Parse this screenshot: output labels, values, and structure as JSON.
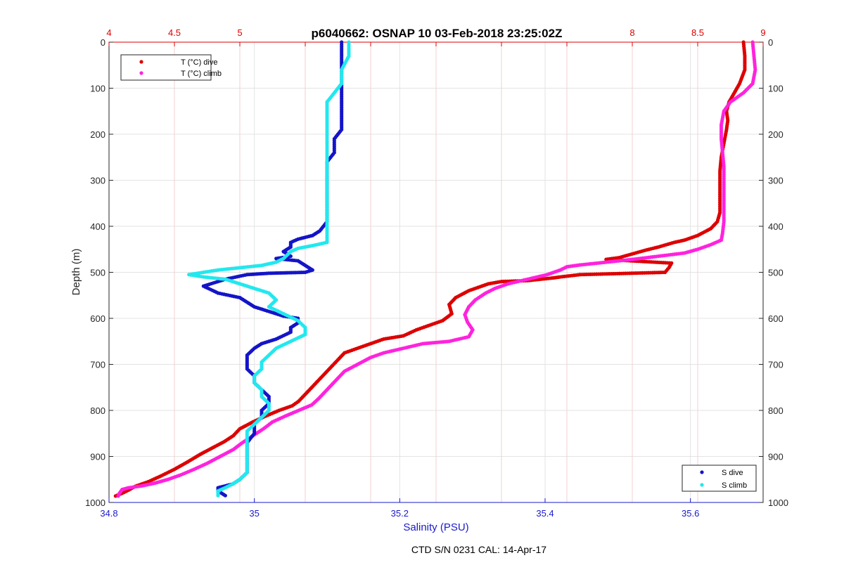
{
  "chart_data": {
    "type": "scatter",
    "title": "p6040662: OSNAP 10 03-Feb-2018 23:25:02Z",
    "footer": "CTD S/N 0231  CAL: 14-Apr-17",
    "y_axis": {
      "label": "Depth (m)",
      "lim": [
        0,
        1000
      ],
      "reversed": true,
      "ticks": [
        0,
        100,
        200,
        300,
        400,
        500,
        600,
        700,
        800,
        900,
        1000
      ]
    },
    "x_bottom": {
      "label": "Salinity (PSU)",
      "lim": [
        34.8,
        35.7
      ],
      "ticks": [
        34.8,
        35,
        35.2,
        35.4,
        35.6
      ],
      "tick_labels": [
        "34.8",
        "35",
        "35.2",
        "35.4",
        "35.6"
      ],
      "color": "#1a1acc"
    },
    "x_top": {
      "lim": [
        4,
        9
      ],
      "ticks": [
        4,
        4.5,
        5,
        5.5,
        6,
        6.5,
        7,
        7.5,
        8,
        8.5,
        9
      ],
      "tick_labels": [
        "4",
        "4.5",
        "5",
        "",
        "",
        "",
        "",
        "",
        "8",
        "8.5",
        "9"
      ],
      "color": "#dd0000"
    },
    "grid": true,
    "legends": {
      "top_left": [
        {
          "label": "T (°C) dive",
          "color": "#dd0000"
        },
        {
          "label": "T (°C) climb",
          "color": "#ff22dd"
        }
      ],
      "bottom_right": [
        {
          "label": "S dive",
          "color": "#1414c8"
        },
        {
          "label": "S climb",
          "color": "#22e8ee"
        }
      ]
    },
    "series": [
      {
        "name": "T (°C) dive",
        "axis": "top",
        "color": "#dd0000",
        "points": [
          [
            8.85,
            0
          ],
          [
            8.86,
            30
          ],
          [
            8.86,
            60
          ],
          [
            8.82,
            90
          ],
          [
            8.78,
            110
          ],
          [
            8.74,
            130
          ],
          [
            8.72,
            150
          ],
          [
            8.73,
            170
          ],
          [
            8.72,
            190
          ],
          [
            8.7,
            220
          ],
          [
            8.68,
            250
          ],
          [
            8.67,
            280
          ],
          [
            8.67,
            310
          ],
          [
            8.67,
            340
          ],
          [
            8.67,
            370
          ],
          [
            8.65,
            390
          ],
          [
            8.6,
            405
          ],
          [
            8.5,
            420
          ],
          [
            8.4,
            430
          ],
          [
            8.32,
            435
          ],
          [
            8.2,
            445
          ],
          [
            8.1,
            452
          ],
          [
            8.0,
            460
          ],
          [
            7.9,
            468
          ],
          [
            7.8,
            472
          ],
          [
            8.3,
            480
          ],
          [
            8.28,
            490
          ],
          [
            8.25,
            500
          ],
          [
            7.6,
            505
          ],
          [
            7.45,
            510
          ],
          [
            7.4,
            512
          ],
          [
            7.3,
            515
          ],
          [
            7.2,
            518
          ],
          [
            7.0,
            520
          ],
          [
            6.9,
            525
          ],
          [
            6.85,
            530
          ],
          [
            6.75,
            540
          ],
          [
            6.65,
            555
          ],
          [
            6.6,
            570
          ],
          [
            6.62,
            590
          ],
          [
            6.55,
            605
          ],
          [
            6.45,
            615
          ],
          [
            6.35,
            625
          ],
          [
            6.25,
            638
          ],
          [
            6.1,
            645
          ],
          [
            6.0,
            655
          ],
          [
            5.9,
            665
          ],
          [
            5.8,
            675
          ],
          [
            5.75,
            690
          ],
          [
            5.7,
            705
          ],
          [
            5.65,
            720
          ],
          [
            5.6,
            735
          ],
          [
            5.55,
            750
          ],
          [
            5.5,
            765
          ],
          [
            5.45,
            780
          ],
          [
            5.4,
            790
          ],
          [
            5.3,
            800
          ],
          [
            5.2,
            812
          ],
          [
            5.1,
            825
          ],
          [
            5.0,
            840
          ],
          [
            4.95,
            855
          ],
          [
            4.88,
            868
          ],
          [
            4.8,
            880
          ],
          [
            4.7,
            895
          ],
          [
            4.6,
            912
          ],
          [
            4.5,
            928
          ],
          [
            4.4,
            942
          ],
          [
            4.3,
            955
          ],
          [
            4.2,
            965
          ],
          [
            4.15,
            973
          ],
          [
            4.1,
            980
          ],
          [
            4.05,
            986
          ]
        ]
      },
      {
        "name": "T (°C) climb",
        "axis": "top",
        "color": "#ff22dd",
        "points": [
          [
            8.92,
            0
          ],
          [
            8.93,
            30
          ],
          [
            8.94,
            60
          ],
          [
            8.92,
            90
          ],
          [
            8.85,
            110
          ],
          [
            8.75,
            130
          ],
          [
            8.7,
            150
          ],
          [
            8.68,
            180
          ],
          [
            8.68,
            210
          ],
          [
            8.69,
            240
          ],
          [
            8.7,
            270
          ],
          [
            8.7,
            300
          ],
          [
            8.7,
            330
          ],
          [
            8.7,
            360
          ],
          [
            8.7,
            390
          ],
          [
            8.69,
            415
          ],
          [
            8.68,
            430
          ],
          [
            8.6,
            440
          ],
          [
            8.5,
            450
          ],
          [
            8.4,
            458
          ],
          [
            8.2,
            465
          ],
          [
            8.0,
            472
          ],
          [
            7.8,
            478
          ],
          [
            7.6,
            484
          ],
          [
            7.5,
            488
          ],
          [
            7.45,
            495
          ],
          [
            7.35,
            505
          ],
          [
            7.2,
            515
          ],
          [
            7.05,
            525
          ],
          [
            6.95,
            535
          ],
          [
            6.88,
            545
          ],
          [
            6.8,
            560
          ],
          [
            6.75,
            575
          ],
          [
            6.72,
            592
          ],
          [
            6.74,
            608
          ],
          [
            6.78,
            625
          ],
          [
            6.75,
            640
          ],
          [
            6.6,
            650
          ],
          [
            6.4,
            655
          ],
          [
            6.25,
            665
          ],
          [
            6.1,
            675
          ],
          [
            6.0,
            685
          ],
          [
            5.9,
            700
          ],
          [
            5.8,
            715
          ],
          [
            5.75,
            730
          ],
          [
            5.7,
            745
          ],
          [
            5.65,
            760
          ],
          [
            5.6,
            775
          ],
          [
            5.55,
            788
          ],
          [
            5.45,
            800
          ],
          [
            5.35,
            812
          ],
          [
            5.25,
            825
          ],
          [
            5.18,
            840
          ],
          [
            5.1,
            855
          ],
          [
            5.02,
            870
          ],
          [
            4.95,
            885
          ],
          [
            4.85,
            900
          ],
          [
            4.75,
            915
          ],
          [
            4.65,
            928
          ],
          [
            4.55,
            940
          ],
          [
            4.45,
            950
          ],
          [
            4.35,
            958
          ],
          [
            4.25,
            964
          ],
          [
            4.15,
            968
          ],
          [
            4.1,
            972
          ],
          [
            4.08,
            980
          ],
          [
            4.07,
            986
          ]
        ]
      },
      {
        "name": "S dive",
        "axis": "bottom",
        "color": "#1414c8",
        "points": [
          [
            35.12,
            0
          ],
          [
            35.12,
            30
          ],
          [
            35.12,
            60
          ],
          [
            35.12,
            90
          ],
          [
            35.12,
            110
          ],
          [
            35.12,
            130
          ],
          [
            35.12,
            150
          ],
          [
            35.12,
            170
          ],
          [
            35.12,
            190
          ],
          [
            35.11,
            210
          ],
          [
            35.11,
            240
          ],
          [
            35.1,
            260
          ],
          [
            35.1,
            280
          ],
          [
            35.1,
            300
          ],
          [
            35.1,
            330
          ],
          [
            35.1,
            360
          ],
          [
            35.1,
            390
          ],
          [
            35.09,
            410
          ],
          [
            35.08,
            420
          ],
          [
            35.06,
            428
          ],
          [
            35.05,
            435
          ],
          [
            35.05,
            445
          ],
          [
            35.04,
            455
          ],
          [
            35.05,
            465
          ],
          [
            35.03,
            470
          ],
          [
            35.06,
            475
          ],
          [
            35.07,
            485
          ],
          [
            35.08,
            495
          ],
          [
            35.07,
            500
          ],
          [
            35.02,
            502
          ],
          [
            34.99,
            505
          ],
          [
            34.96,
            515
          ],
          [
            34.93,
            530
          ],
          [
            34.95,
            545
          ],
          [
            34.98,
            555
          ],
          [
            34.99,
            565
          ],
          [
            35.0,
            575
          ],
          [
            35.02,
            585
          ],
          [
            35.04,
            595
          ],
          [
            35.06,
            600
          ],
          [
            35.06,
            610
          ],
          [
            35.05,
            620
          ],
          [
            35.05,
            630
          ],
          [
            35.03,
            645
          ],
          [
            35.01,
            655
          ],
          [
            35.0,
            665
          ],
          [
            34.99,
            680
          ],
          [
            34.99,
            695
          ],
          [
            34.99,
            710
          ],
          [
            35.0,
            725
          ],
          [
            35.0,
            740
          ],
          [
            35.01,
            755
          ],
          [
            35.02,
            770
          ],
          [
            35.02,
            785
          ],
          [
            35.01,
            800
          ],
          [
            35.01,
            815
          ],
          [
            35.0,
            830
          ],
          [
            35.0,
            850
          ],
          [
            34.99,
            870
          ],
          [
            34.99,
            890
          ],
          [
            34.99,
            905
          ],
          [
            34.99,
            920
          ],
          [
            34.99,
            935
          ],
          [
            34.98,
            950
          ],
          [
            34.97,
            960
          ],
          [
            34.95,
            968
          ],
          [
            34.95,
            975
          ],
          [
            34.96,
            985
          ]
        ]
      },
      {
        "name": "S climb",
        "axis": "bottom",
        "color": "#22e8ee",
        "points": [
          [
            35.13,
            0
          ],
          [
            35.13,
            30
          ],
          [
            35.12,
            60
          ],
          [
            35.12,
            90
          ],
          [
            35.11,
            110
          ],
          [
            35.1,
            130
          ],
          [
            35.1,
            150
          ],
          [
            35.1,
            170
          ],
          [
            35.1,
            190
          ],
          [
            35.1,
            220
          ],
          [
            35.1,
            250
          ],
          [
            35.1,
            280
          ],
          [
            35.1,
            310
          ],
          [
            35.1,
            340
          ],
          [
            35.1,
            370
          ],
          [
            35.1,
            400
          ],
          [
            35.1,
            420
          ],
          [
            35.1,
            435
          ],
          [
            35.08,
            442
          ],
          [
            35.06,
            448
          ],
          [
            35.05,
            455
          ],
          [
            35.04,
            470
          ],
          [
            35.03,
            478
          ],
          [
            35.01,
            485
          ],
          [
            34.98,
            490
          ],
          [
            34.95,
            495
          ],
          [
            34.93,
            500
          ],
          [
            34.91,
            505
          ],
          [
            34.93,
            510
          ],
          [
            34.96,
            515
          ],
          [
            34.98,
            525
          ],
          [
            35.0,
            535
          ],
          [
            35.02,
            545
          ],
          [
            35.03,
            560
          ],
          [
            35.02,
            575
          ],
          [
            35.04,
            590
          ],
          [
            35.06,
            605
          ],
          [
            35.07,
            620
          ],
          [
            35.07,
            635
          ],
          [
            35.05,
            650
          ],
          [
            35.03,
            665
          ],
          [
            35.02,
            680
          ],
          [
            35.01,
            695
          ],
          [
            35.01,
            710
          ],
          [
            35.0,
            725
          ],
          [
            35.0,
            740
          ],
          [
            35.01,
            755
          ],
          [
            35.01,
            770
          ],
          [
            35.02,
            785
          ],
          [
            35.02,
            800
          ],
          [
            35.01,
            815
          ],
          [
            35.0,
            830
          ],
          [
            34.99,
            845
          ],
          [
            34.99,
            860
          ],
          [
            34.99,
            875
          ],
          [
            34.99,
            890
          ],
          [
            34.99,
            905
          ],
          [
            34.99,
            920
          ],
          [
            34.99,
            935
          ],
          [
            34.98,
            950
          ],
          [
            34.97,
            960
          ],
          [
            34.96,
            968
          ],
          [
            34.95,
            975
          ],
          [
            34.95,
            985
          ]
        ]
      }
    ]
  }
}
